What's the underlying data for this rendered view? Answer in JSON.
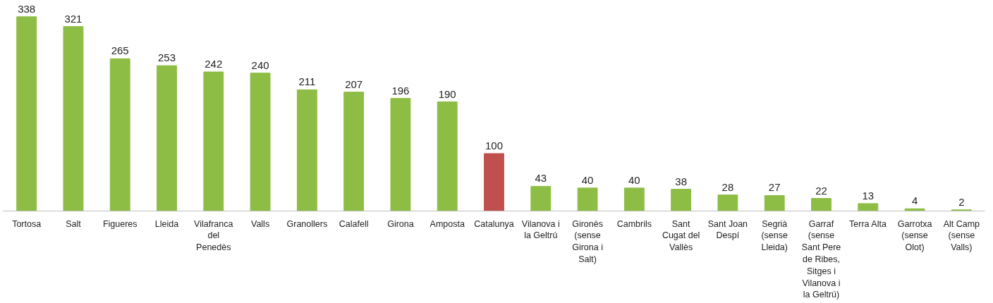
{
  "chart_data": {
    "type": "bar",
    "categories": [
      "Tortosa",
      "Salt",
      "Figueres",
      "Lleida",
      "Vilafranca del Penedès",
      "Valls",
      "Granollers",
      "Calafell",
      "Girona",
      "Amposta",
      "Catalunya",
      "Vilanova i la Geltrú",
      "Gironès (sense Girona i Salt)",
      "Cambrils",
      "Sant Cugat del Vallès",
      "Sant Joan Despí",
      "Segrià (sense Lleida)",
      "Garraf (sense Sant Pere de Ribes, Sitges i Vilanova i la Geltrú)",
      "Terra Alta",
      "Garrotxa (sense Olot)",
      "Alt Camp (sense Valls)"
    ],
    "values": [
      338,
      321,
      265,
      253,
      242,
      240,
      211,
      207,
      196,
      190,
      100,
      43,
      40,
      40,
      38,
      28,
      27,
      22,
      13,
      4,
      2
    ],
    "colors": [
      "#8dbd45",
      "#8dbd45",
      "#8dbd45",
      "#8dbd45",
      "#8dbd45",
      "#8dbd45",
      "#8dbd45",
      "#8dbd45",
      "#8dbd45",
      "#8dbd45",
      "#c0504d",
      "#8dbd45",
      "#8dbd45",
      "#8dbd45",
      "#8dbd45",
      "#8dbd45",
      "#8dbd45",
      "#8dbd45",
      "#8dbd45",
      "#8dbd45",
      "#8dbd45"
    ],
    "data_labels": true
  }
}
